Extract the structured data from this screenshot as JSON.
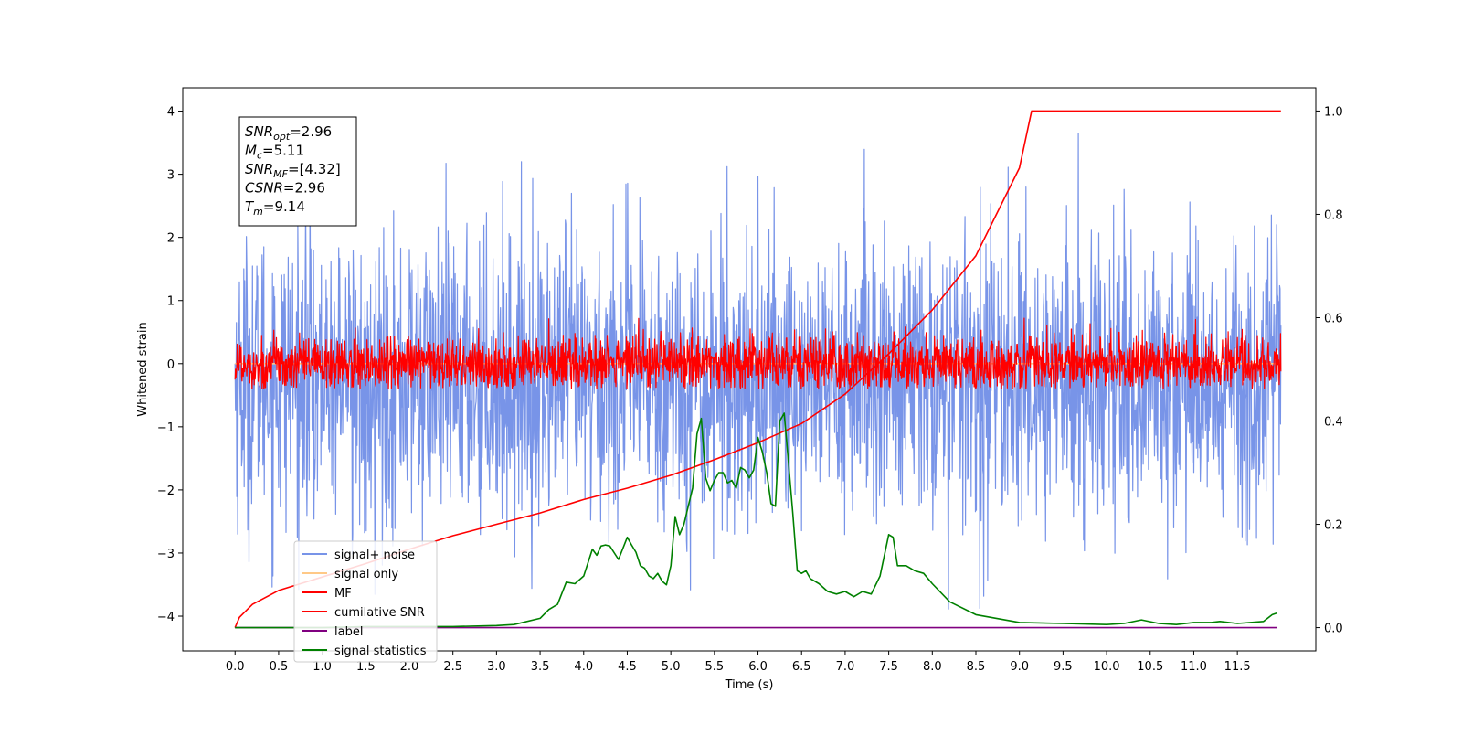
{
  "chart_data": {
    "type": "line",
    "xlabel": "Time (s)",
    "ylabel": "Whitened strain",
    "y2label": "",
    "xlim": [
      -0.6,
      12.4
    ],
    "ylim": [
      -4.55,
      4.37
    ],
    "y2lim": [
      -0.045,
      1.045
    ],
    "x_ticks": [
      "0.0",
      "0.5",
      "1.0",
      "1.5",
      "2.0",
      "2.5",
      "3.0",
      "3.5",
      "4.0",
      "4.5",
      "5.0",
      "5.5",
      "6.0",
      "6.5",
      "7.0",
      "7.5",
      "8.0",
      "8.5",
      "9.0",
      "9.5",
      "10.0",
      "10.5",
      "11.0",
      "11.5"
    ],
    "y_ticks": [
      "4",
      "3",
      "2",
      "1",
      "0",
      "−1",
      "−2",
      "−3",
      "−4"
    ],
    "y2_ticks": [
      "1.0",
      "0.8",
      "0.6",
      "0.4",
      "0.2",
      "0.0"
    ],
    "grid": false,
    "legend_position": "lower-left",
    "annotation": [
      {
        "main": "SNR",
        "sub": "opt",
        "rest": "=2.96"
      },
      {
        "main": "M",
        "sub": "c",
        "rest": "=5.11"
      },
      {
        "main": "SNR",
        "sub": "MF",
        "rest": "=[4.32]"
      },
      {
        "main": "CSNR",
        "sub": "",
        "rest": "=2.96"
      },
      {
        "main": "T",
        "sub": "m",
        "rest": "=9.14"
      }
    ],
    "series": [
      {
        "name": "signal+ noise",
        "axis": "left",
        "color": "#7894e8",
        "style": "noise",
        "x_range": [
          0.0,
          12.0
        ],
        "center": -0.25,
        "spread": 1.15,
        "extremes": [
          -3.9,
          4.0
        ]
      },
      {
        "name": "signal only",
        "axis": "left",
        "color": "#ffc987",
        "style": "line",
        "x": [
          0.0,
          12.0
        ],
        "y": [
          0.0,
          0.0
        ]
      },
      {
        "name": "MF",
        "axis": "left",
        "color": "#ff0000",
        "style": "noise",
        "x_range": [
          0.0,
          12.0
        ],
        "center": 0.0,
        "spread": 0.22,
        "extremes": [
          -0.4,
          0.95
        ]
      },
      {
        "name": "cumilative SNR",
        "axis": "right",
        "color": "#ff0000",
        "style": "line",
        "x": [
          0.0,
          0.05,
          0.2,
          0.5,
          1.0,
          1.5,
          2.0,
          2.5,
          3.0,
          3.5,
          4.0,
          4.5,
          5.0,
          5.5,
          6.0,
          6.5,
          7.0,
          7.5,
          8.0,
          8.5,
          9.0,
          9.14,
          9.2,
          10.0,
          11.0,
          12.0
        ],
        "y": [
          0.0,
          0.02,
          0.045,
          0.072,
          0.098,
          0.124,
          0.152,
          0.178,
          0.2,
          0.222,
          0.248,
          0.27,
          0.295,
          0.325,
          0.358,
          0.395,
          0.452,
          0.53,
          0.615,
          0.72,
          0.89,
          1.0,
          1.0,
          1.0,
          1.0,
          1.0
        ]
      },
      {
        "name": "label",
        "axis": "right",
        "color": "#800080",
        "style": "line",
        "x": [
          0.0,
          11.95
        ],
        "y": [
          0.0,
          0.0
        ]
      },
      {
        "name": "signal statistics",
        "axis": "right",
        "color": "#008000",
        "style": "line",
        "x": [
          0.0,
          0.5,
          1.0,
          1.5,
          2.0,
          2.5,
          3.0,
          3.2,
          3.5,
          3.6,
          3.7,
          3.8,
          3.9,
          4.0,
          4.1,
          4.15,
          4.2,
          4.25,
          4.3,
          4.4,
          4.5,
          4.55,
          4.6,
          4.65,
          4.7,
          4.75,
          4.8,
          4.85,
          4.9,
          4.95,
          5.0,
          5.05,
          5.1,
          5.15,
          5.2,
          5.25,
          5.3,
          5.35,
          5.4,
          5.45,
          5.5,
          5.55,
          5.6,
          5.65,
          5.7,
          5.75,
          5.8,
          5.85,
          5.9,
          5.95,
          6.0,
          6.05,
          6.1,
          6.15,
          6.2,
          6.25,
          6.3,
          6.35,
          6.4,
          6.45,
          6.5,
          6.55,
          6.6,
          6.7,
          6.8,
          6.9,
          7.0,
          7.1,
          7.2,
          7.3,
          7.4,
          7.5,
          7.55,
          7.6,
          7.7,
          7.8,
          7.9,
          8.0,
          8.2,
          8.5,
          9.0,
          9.5,
          10.0,
          10.2,
          10.4,
          10.6,
          10.8,
          11.0,
          11.2,
          11.3,
          11.5,
          11.8,
          11.9,
          11.95
        ],
        "y": [
          0.0,
          0.0,
          0.0,
          0.002,
          0.002,
          0.002,
          0.004,
          0.006,
          0.018,
          0.035,
          0.045,
          0.088,
          0.085,
          0.1,
          0.152,
          0.14,
          0.158,
          0.16,
          0.158,
          0.132,
          0.175,
          0.16,
          0.146,
          0.12,
          0.115,
          0.1,
          0.095,
          0.105,
          0.09,
          0.083,
          0.12,
          0.215,
          0.18,
          0.2,
          0.235,
          0.27,
          0.375,
          0.405,
          0.29,
          0.265,
          0.285,
          0.3,
          0.3,
          0.28,
          0.285,
          0.27,
          0.31,
          0.305,
          0.29,
          0.305,
          0.368,
          0.34,
          0.3,
          0.24,
          0.235,
          0.4,
          0.415,
          0.32,
          0.22,
          0.11,
          0.105,
          0.11,
          0.095,
          0.085,
          0.07,
          0.065,
          0.07,
          0.06,
          0.07,
          0.065,
          0.1,
          0.18,
          0.175,
          0.12,
          0.12,
          0.11,
          0.105,
          0.085,
          0.05,
          0.025,
          0.01,
          0.008,
          0.006,
          0.008,
          0.015,
          0.008,
          0.006,
          0.01,
          0.01,
          0.012,
          0.008,
          0.012,
          0.025,
          0.028
        ]
      }
    ]
  }
}
